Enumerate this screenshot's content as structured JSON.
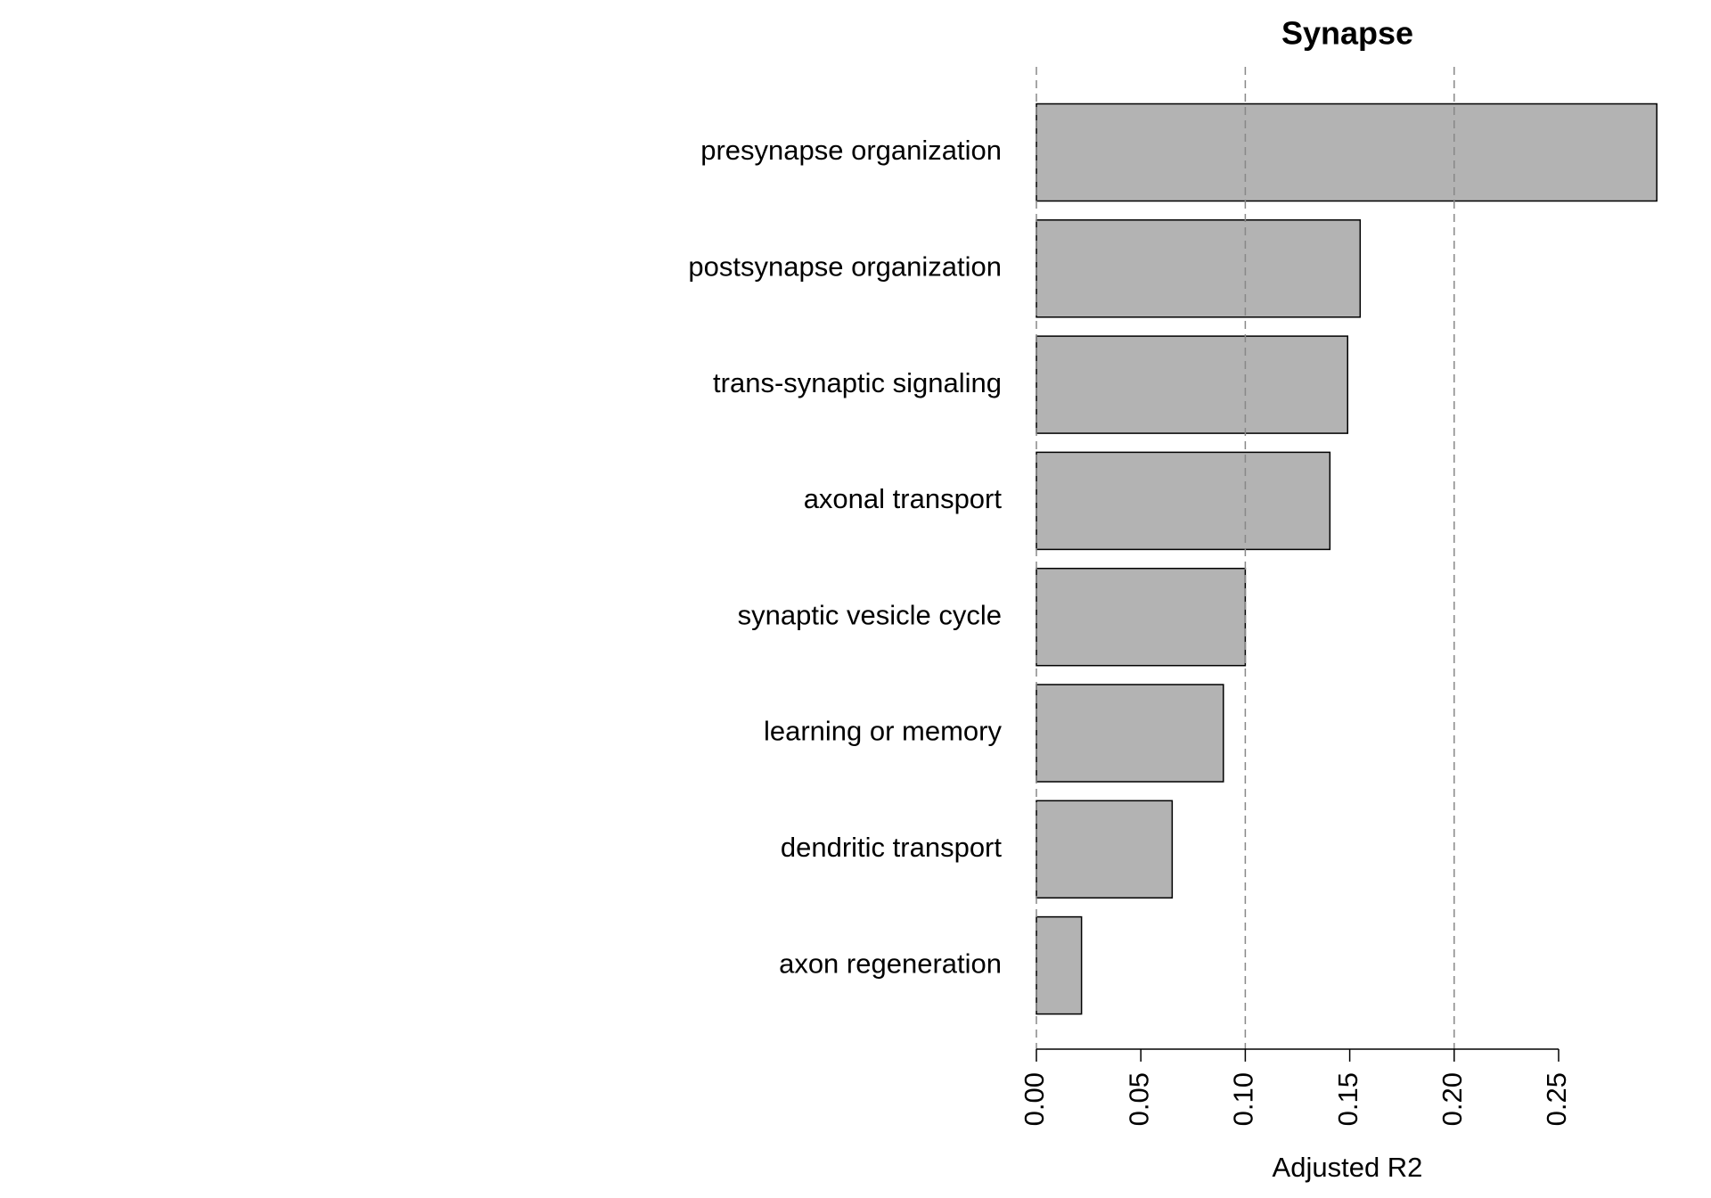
{
  "chart_data": {
    "type": "barh",
    "title": "Synapse",
    "xlabel": "Adjusted R2",
    "categories": [
      "presynapse organization",
      "postsynapse organization",
      "trans-synaptic signaling",
      "axonal transport",
      "synaptic vesicle cycle",
      "learning or memory",
      "dendritic transport",
      "axon regeneration"
    ],
    "values": [
      0.297,
      0.155,
      0.149,
      0.1405,
      0.1,
      0.0895,
      0.065,
      0.0216
    ],
    "color": "#b3b3b3",
    "xlim": [
      0,
      0.3
    ],
    "xticks": [
      {
        "value": 0,
        "label": "0.00"
      },
      0.05,
      {
        "value": 0.1,
        "label": "0.10"
      },
      0.15,
      {
        "value": 0.2,
        "label": "0.20"
      },
      0.25
    ],
    "vlines": [
      0,
      0.1,
      0.2
    ]
  }
}
